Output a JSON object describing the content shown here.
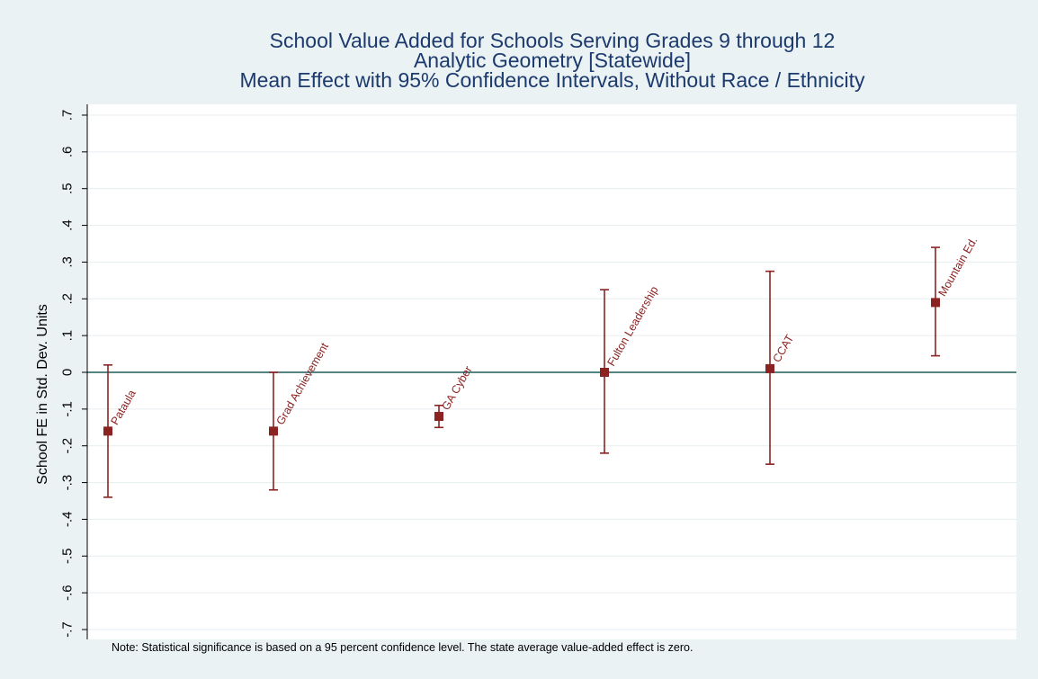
{
  "colors": {
    "background": "#eaf2f3",
    "plot_background": "#ffffff",
    "marker": "#8b2323",
    "zero_line": "#1f5b5b",
    "title": "#1c3a6e",
    "grid": "#e6eef0"
  },
  "chart_data": {
    "type": "scatter",
    "title": "School Value Added for Schools Serving Grades 9 through 12",
    "subtitle_lines": [
      "Analytic Geometry [Statewide]",
      "Mean Effect with 95% Confidence Intervals, Without Race / Ethnicity"
    ],
    "ylabel": "School FE in Std. Dev. Units",
    "xlabel": "",
    "ylim": [
      -0.7,
      0.7
    ],
    "yticks": [
      0.7,
      0.6,
      0.5,
      0.4,
      0.3,
      0.2,
      0.1,
      0,
      -0.1,
      -0.2,
      -0.3,
      -0.4,
      -0.5,
      -0.6,
      -0.7
    ],
    "ytick_labels": [
      ".7",
      ".6",
      ".5",
      ".4",
      ".3",
      ".2",
      ".1",
      "0",
      "-.1",
      "-.2",
      "-.3",
      "-.4",
      "-.5",
      "-.6",
      "-.7"
    ],
    "grid": true,
    "reference_line_y": 0,
    "points": [
      {
        "label": "Pataula",
        "mean": -0.16,
        "ci_low": -0.34,
        "ci_high": 0.02
      },
      {
        "label": "Grad Achievement",
        "mean": -0.16,
        "ci_low": -0.32,
        "ci_high": 0.0
      },
      {
        "label": "GA Cyber",
        "mean": -0.12,
        "ci_low": -0.15,
        "ci_high": -0.09
      },
      {
        "label": "Fulton Leadership",
        "mean": 0.0,
        "ci_low": -0.22,
        "ci_high": 0.225
      },
      {
        "label": "CCAT",
        "mean": 0.01,
        "ci_low": -0.25,
        "ci_high": 0.275
      },
      {
        "label": "Mountain Ed.",
        "mean": 0.19,
        "ci_low": 0.045,
        "ci_high": 0.34
      }
    ],
    "note": "Note: Statistical significance is based on a 95 percent confidence level. The state average value-added effect is zero."
  }
}
